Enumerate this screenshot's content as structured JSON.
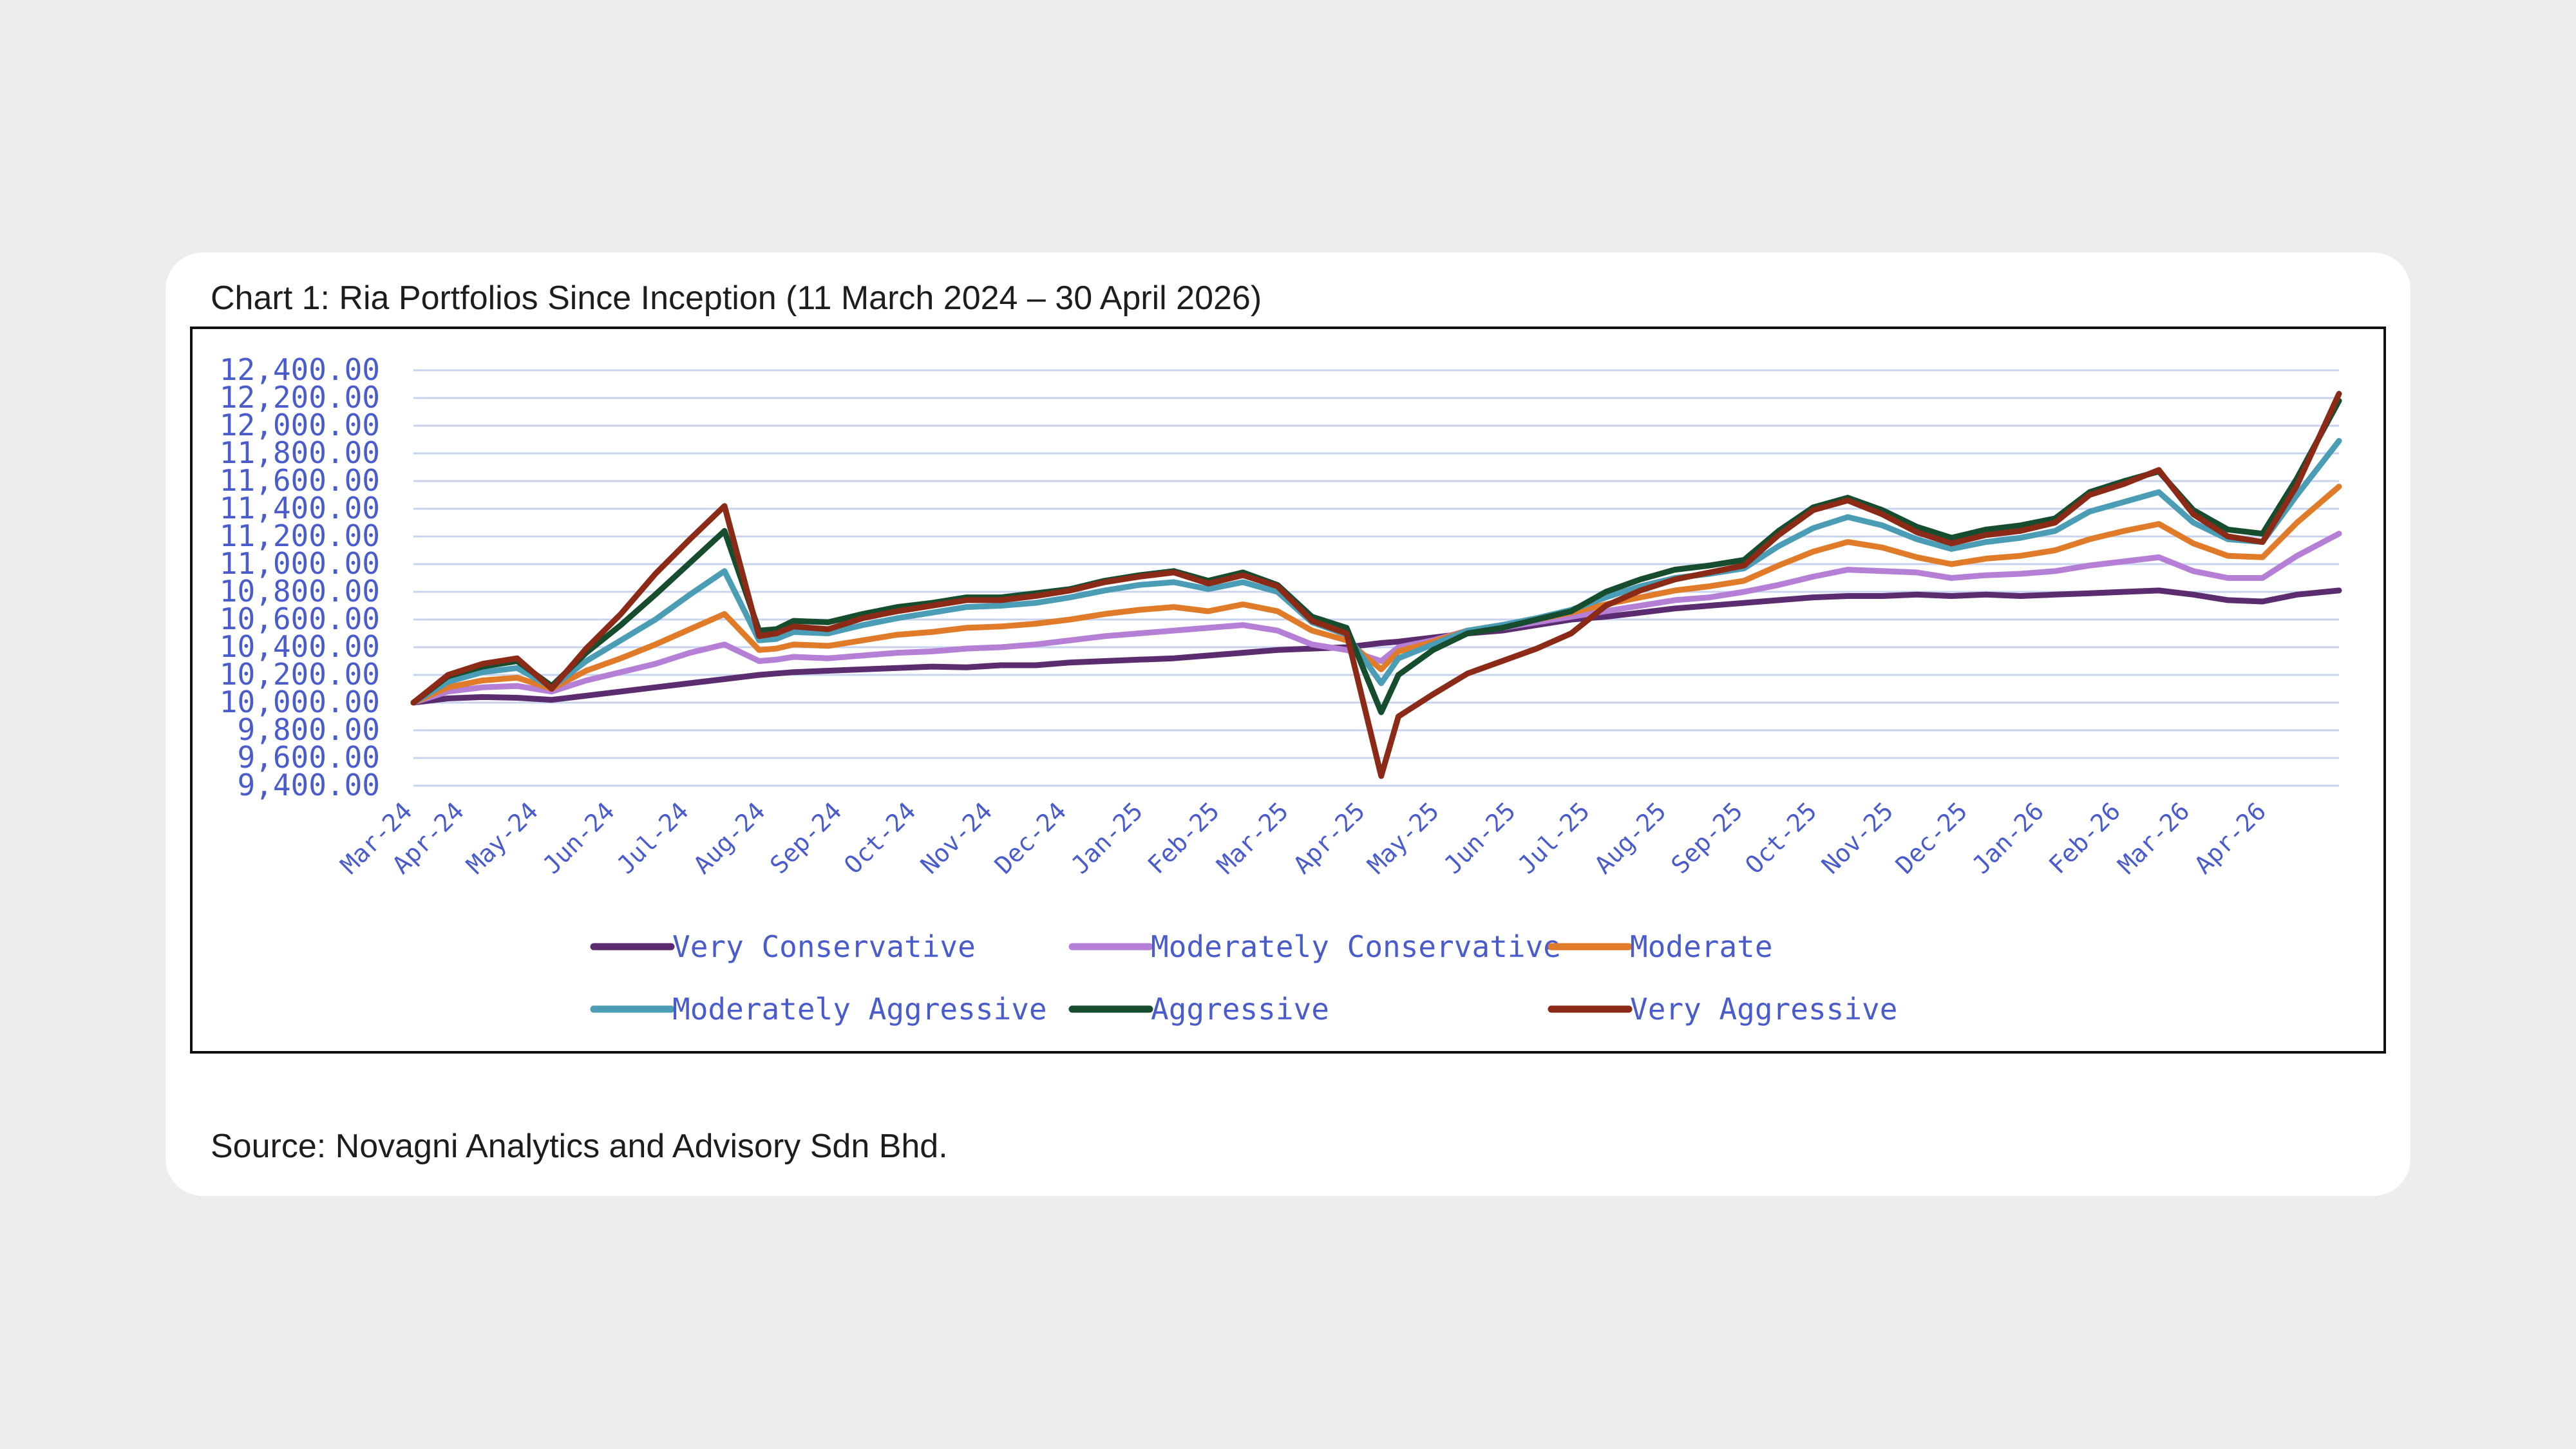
{
  "title": "Chart 1: Ria Portfolios Since Inception (11 March 2024 – 30 April 2026)",
  "source": "Source: Novagni Analytics and Advisory Sdn Bhd.",
  "colors": {
    "background": "#eeedeb",
    "card": "#ffffff",
    "axis_text": "#4a5ccc",
    "grid": "#c9d3ee"
  },
  "chart_data": {
    "type": "line",
    "title": "",
    "xlabel": "",
    "ylabel": "",
    "ylim": [
      9400,
      12400
    ],
    "y_ticks": [
      9400,
      9600,
      9800,
      10000,
      10200,
      10400,
      10600,
      10800,
      11000,
      11200,
      11400,
      11600,
      11800,
      12000,
      12200,
      12400
    ],
    "y_tick_labels": [
      "9,400.00",
      "9,600.00",
      "9,800.00",
      "10,000.00",
      "10,200.00",
      "10,400.00",
      "10,600.00",
      "10,800.00",
      "11,000.00",
      "11,200.00",
      "11,400.00",
      "11,600.00",
      "11,800.00",
      "12,000.00",
      "12,200.00",
      "12,400.00"
    ],
    "x_tick_labels": [
      "Mar-24",
      "Apr-24",
      "May-24",
      "Jun-24",
      "Jul-24",
      "Aug-24",
      "Sep-24",
      "Oct-24",
      "Nov-24",
      "Dec-24",
      "Jan-25",
      "Feb-25",
      "Mar-25",
      "Apr-25",
      "May-25",
      "Jun-25",
      "Jul-25",
      "Aug-25",
      "Sep-25",
      "Oct-25",
      "Nov-25",
      "Dec-25",
      "Jan-26",
      "Feb-26",
      "Mar-26",
      "Apr-26"
    ],
    "grid": true,
    "legend_position": "bottom",
    "x": [
      "2024-03-11",
      "2024-03-25",
      "2024-04-08",
      "2024-04-22",
      "2024-05-06",
      "2024-05-20",
      "2024-06-03",
      "2024-06-17",
      "2024-07-01",
      "2024-07-15",
      "2024-07-29",
      "2024-08-05",
      "2024-08-12",
      "2024-08-26",
      "2024-09-09",
      "2024-09-23",
      "2024-10-07",
      "2024-10-21",
      "2024-11-04",
      "2024-11-18",
      "2024-12-02",
      "2024-12-16",
      "2024-12-30",
      "2025-01-13",
      "2025-01-27",
      "2025-02-10",
      "2025-02-24",
      "2025-03-10",
      "2025-03-24",
      "2025-04-07",
      "2025-04-14",
      "2025-04-28",
      "2025-05-12",
      "2025-05-26",
      "2025-06-09",
      "2025-06-23",
      "2025-07-07",
      "2025-07-21",
      "2025-08-04",
      "2025-08-18",
      "2025-09-01",
      "2025-09-15",
      "2025-09-29",
      "2025-10-13",
      "2025-10-27",
      "2025-11-10",
      "2025-11-24",
      "2025-12-08",
      "2025-12-22",
      "2026-01-05",
      "2026-01-19",
      "2026-02-02",
      "2026-02-16",
      "2026-03-02",
      "2026-03-16",
      "2026-03-30",
      "2026-04-13",
      "2026-04-30"
    ],
    "series": [
      {
        "name": "Very Conservative",
        "color": "#5b2c6f",
        "values": [
          10000,
          10030,
          10040,
          10035,
          10020,
          10050,
          10080,
          10110,
          10140,
          10170,
          10200,
          10210,
          10220,
          10230,
          10240,
          10250,
          10260,
          10255,
          10270,
          10270,
          10290,
          10300,
          10310,
          10320,
          10340,
          10360,
          10380,
          10390,
          10400,
          10430,
          10440,
          10470,
          10500,
          10520,
          10560,
          10600,
          10620,
          10650,
          10680,
          10700,
          10720,
          10740,
          10760,
          10770,
          10770,
          10780,
          10770,
          10780,
          10770,
          10780,
          10790,
          10800,
          10810,
          10780,
          10740,
          10730,
          10780,
          10810
        ]
      },
      {
        "name": "Moderately Conservative",
        "color": "#b57fd6",
        "values": [
          10000,
          10080,
          10110,
          10120,
          10080,
          10160,
          10220,
          10280,
          10360,
          10420,
          10300,
          10310,
          10330,
          10320,
          10340,
          10360,
          10370,
          10390,
          10400,
          10420,
          10450,
          10480,
          10500,
          10520,
          10540,
          10560,
          10520,
          10420,
          10380,
          10300,
          10400,
          10450,
          10520,
          10540,
          10580,
          10620,
          10660,
          10700,
          10740,
          10760,
          10800,
          10850,
          10910,
          10960,
          10950,
          10940,
          10900,
          10920,
          10930,
          10950,
          10990,
          11020,
          11050,
          10950,
          10900,
          10900,
          11060,
          11220
        ]
      },
      {
        "name": "Moderate",
        "color": "#e07b2a",
        "values": [
          10000,
          10110,
          10160,
          10180,
          10100,
          10230,
          10320,
          10420,
          10530,
          10640,
          10380,
          10390,
          10420,
          10410,
          10450,
          10490,
          10510,
          10540,
          10550,
          10570,
          10600,
          10640,
          10670,
          10690,
          10660,
          10710,
          10660,
          10520,
          10450,
          10240,
          10370,
          10440,
          10520,
          10560,
          10600,
          10650,
          10710,
          10760,
          10810,
          10840,
          10880,
          10990,
          11090,
          11160,
          11120,
          11050,
          11000,
          11040,
          11060,
          11100,
          11180,
          11240,
          11290,
          11150,
          11060,
          11050,
          11300,
          11560
        ]
      },
      {
        "name": "Moderately Aggressive",
        "color": "#4a9db5",
        "values": [
          10000,
          10150,
          10220,
          10250,
          10110,
          10300,
          10450,
          10600,
          10780,
          10950,
          10450,
          10460,
          10510,
          10500,
          10560,
          10610,
          10650,
          10690,
          10700,
          10720,
          10760,
          10810,
          10850,
          10870,
          10820,
          10870,
          10800,
          10580,
          10490,
          10140,
          10320,
          10420,
          10520,
          10560,
          10610,
          10670,
          10760,
          10840,
          10900,
          10930,
          10970,
          11130,
          11260,
          11340,
          11280,
          11180,
          11110,
          11160,
          11190,
          11240,
          11380,
          11450,
          11520,
          11300,
          11180,
          11160,
          11500,
          11890
        ]
      },
      {
        "name": "Aggressive",
        "color": "#174d2f",
        "values": [
          10000,
          10190,
          10260,
          10300,
          10120,
          10360,
          10560,
          10780,
          11010,
          11240,
          10520,
          10530,
          10590,
          10580,
          10640,
          10690,
          10720,
          10760,
          10760,
          10790,
          10820,
          10880,
          10920,
          10950,
          10880,
          10940,
          10850,
          10620,
          10540,
          9930,
          10200,
          10380,
          10500,
          10540,
          10600,
          10660,
          10800,
          10890,
          10960,
          10990,
          11030,
          11240,
          11410,
          11480,
          11390,
          11270,
          11190,
          11250,
          11280,
          11330,
          11520,
          11600,
          11670,
          11390,
          11250,
          11220,
          11620,
          12180
        ]
      },
      {
        "name": "Very Aggressive",
        "color": "#8b2a16",
        "values": [
          10000,
          10200,
          10280,
          10320,
          10100,
          10390,
          10640,
          10930,
          11180,
          11420,
          10480,
          10500,
          10550,
          10530,
          10610,
          10660,
          10700,
          10740,
          10740,
          10770,
          10810,
          10870,
          10910,
          10940,
          10860,
          10920,
          10840,
          10590,
          10500,
          9470,
          9900,
          10060,
          10210,
          10300,
          10390,
          10500,
          10700,
          10810,
          10890,
          10940,
          10990,
          11210,
          11390,
          11460,
          11360,
          11230,
          11150,
          11210,
          11240,
          11300,
          11500,
          11580,
          11680,
          11360,
          11200,
          11160,
          11570,
          12230
        ]
      }
    ]
  }
}
